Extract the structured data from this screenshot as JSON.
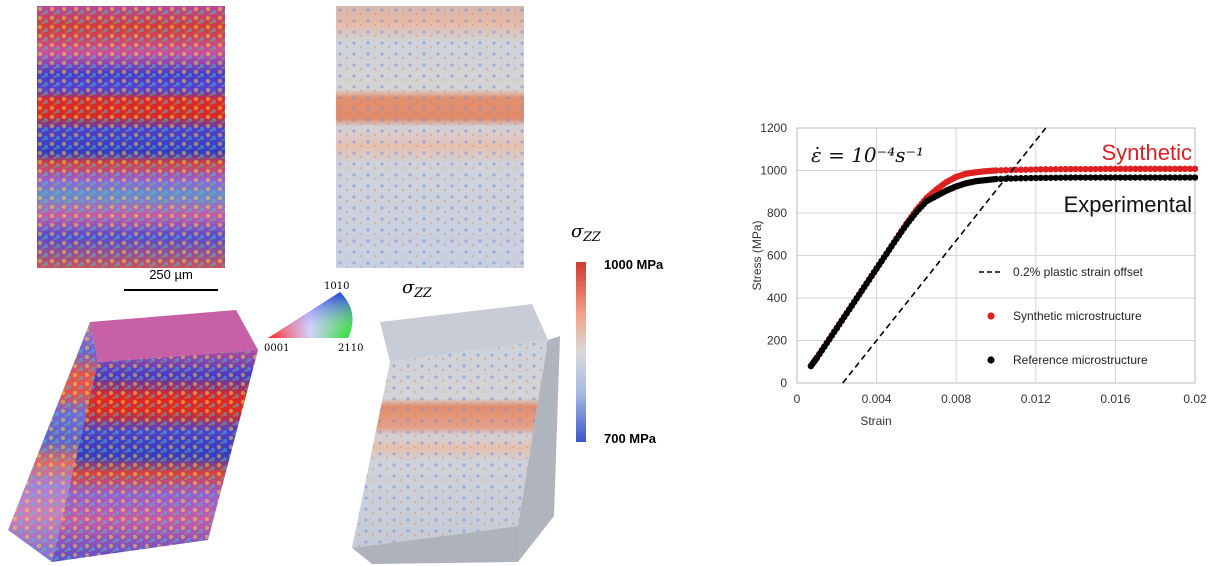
{
  "figure": {
    "scalebar_label": "250 µm",
    "sigma_label": "σ",
    "sigma_sub": "ZZ",
    "ipf_key": {
      "top_label": "1010",
      "left_label": "0001",
      "right_label": "2110"
    },
    "colorbar": {
      "max_label": "1000 MPa",
      "min_label": "700 MPa",
      "colors": [
        "#d03a2e",
        "#f2a58a",
        "#d8d8d8",
        "#a9bde4",
        "#3a57c8"
      ]
    }
  },
  "chart_data": {
    "type": "scatter",
    "xlabel": "Strain",
    "ylabel": "Stress (MPa)",
    "xlim": [
      0,
      0.02
    ],
    "ylim": [
      0,
      1200
    ],
    "xticks": [
      "0",
      "0.004",
      "0.008",
      "0.012",
      "0.016",
      "0.02"
    ],
    "yticks": [
      "0",
      "200",
      "400",
      "600",
      "800",
      "1000",
      "1200"
    ],
    "grid": true,
    "annotation": "ε̇ = 10⁻⁴s⁻¹",
    "series": [
      {
        "name": "Synthetic microstructure",
        "label": "Synthetic",
        "color": "#e02020",
        "points": [
          [
            0.0007,
            80
          ],
          [
            0.001,
            120
          ],
          [
            0.0015,
            190
          ],
          [
            0.002,
            260
          ],
          [
            0.0025,
            330
          ],
          [
            0.003,
            400
          ],
          [
            0.0035,
            470
          ],
          [
            0.004,
            540
          ],
          [
            0.0045,
            610
          ],
          [
            0.005,
            680
          ],
          [
            0.0055,
            750
          ],
          [
            0.006,
            815
          ],
          [
            0.0065,
            870
          ],
          [
            0.007,
            910
          ],
          [
            0.0075,
            945
          ],
          [
            0.008,
            970
          ],
          [
            0.0085,
            985
          ],
          [
            0.009,
            992
          ],
          [
            0.0095,
            997
          ],
          [
            0.01,
            1000
          ],
          [
            0.011,
            1003
          ],
          [
            0.012,
            1005
          ],
          [
            0.013,
            1006
          ],
          [
            0.014,
            1007
          ],
          [
            0.015,
            1007
          ],
          [
            0.016,
            1008
          ],
          [
            0.017,
            1008
          ],
          [
            0.018,
            1008
          ],
          [
            0.019,
            1008
          ],
          [
            0.02,
            1008
          ]
        ]
      },
      {
        "name": "Reference microstructure",
        "label": "Experimental",
        "color": "#000000",
        "points": [
          [
            0.0007,
            80
          ],
          [
            0.001,
            118
          ],
          [
            0.0015,
            188
          ],
          [
            0.002,
            258
          ],
          [
            0.0025,
            328
          ],
          [
            0.003,
            398
          ],
          [
            0.0035,
            468
          ],
          [
            0.004,
            538
          ],
          [
            0.0045,
            608
          ],
          [
            0.005,
            678
          ],
          [
            0.0055,
            745
          ],
          [
            0.006,
            805
          ],
          [
            0.0065,
            855
          ],
          [
            0.007,
            880
          ],
          [
            0.0075,
            905
          ],
          [
            0.008,
            925
          ],
          [
            0.0085,
            940
          ],
          [
            0.009,
            950
          ],
          [
            0.0095,
            955
          ],
          [
            0.01,
            960
          ],
          [
            0.011,
            963
          ],
          [
            0.012,
            965
          ],
          [
            0.013,
            966
          ],
          [
            0.014,
            967
          ],
          [
            0.015,
            967
          ],
          [
            0.016,
            967
          ],
          [
            0.017,
            967
          ],
          [
            0.018,
            967
          ],
          [
            0.019,
            967
          ],
          [
            0.02,
            967
          ]
        ]
      },
      {
        "name": "0.2% plastic strain offset",
        "style": "dashed",
        "color": "#000000",
        "points": [
          [
            0.0023,
            0
          ],
          [
            0.0125,
            1200
          ]
        ]
      }
    ],
    "legend_position": "bottom-right"
  }
}
